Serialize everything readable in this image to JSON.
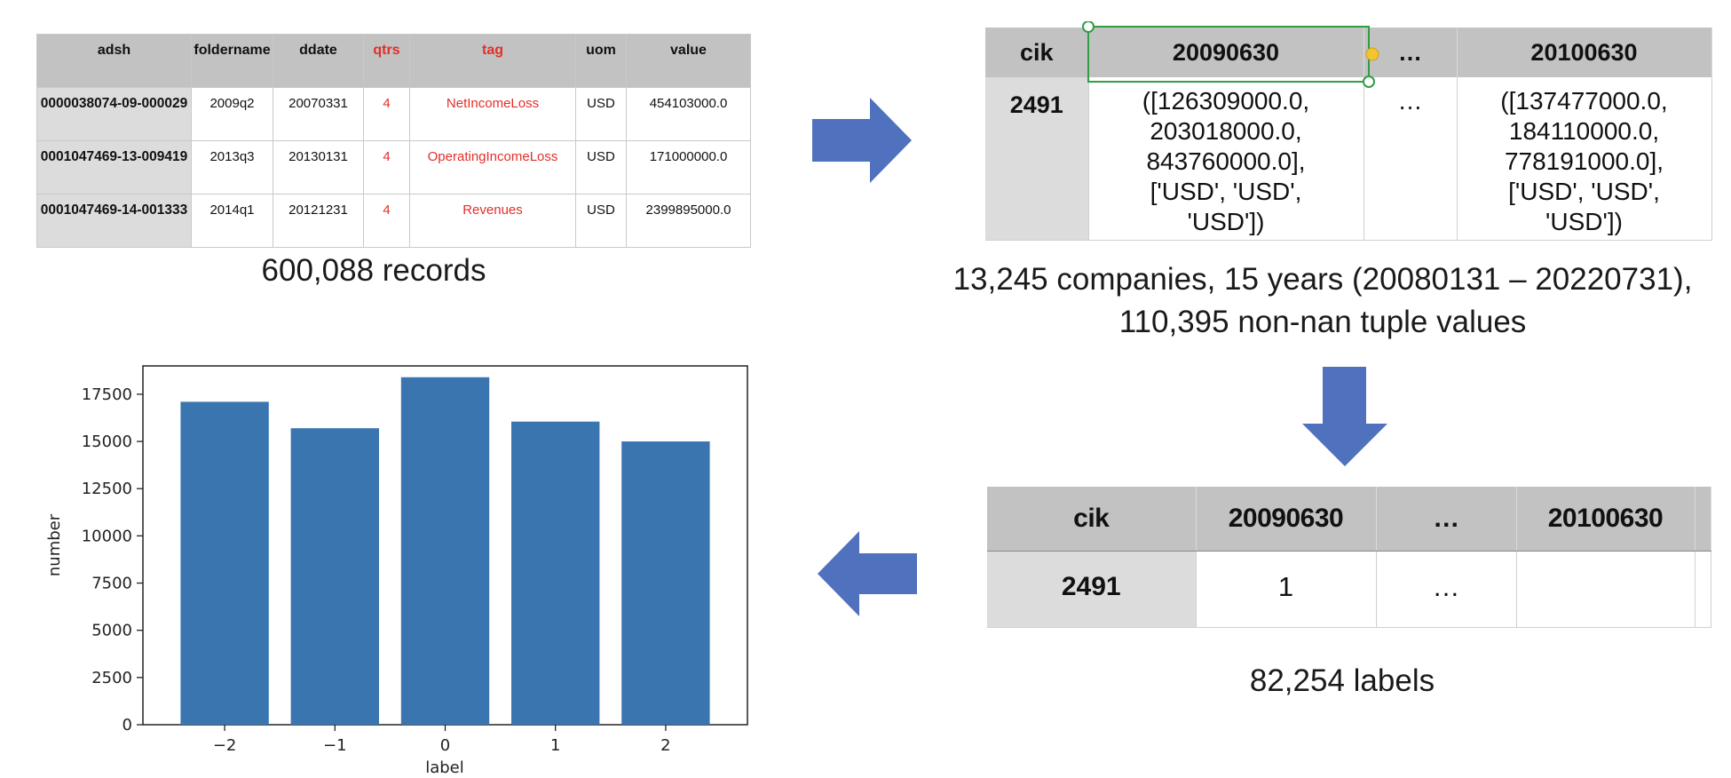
{
  "table_raw": {
    "columns": [
      "adsh",
      "foldername",
      "ddate",
      "qtrs",
      "tag",
      "uom",
      "value"
    ],
    "rows": [
      [
        "0000038074-09-000029",
        "2009q2",
        "20070331",
        "4",
        "NetIncomeLoss",
        "USD",
        "454103000.0"
      ],
      [
        "0001047469-13-009419",
        "2013q3",
        "20130131",
        "4",
        "OperatingIncomeLoss",
        "USD",
        "171000000.0"
      ],
      [
        "0001047469-14-001333",
        "2014q1",
        "20121231",
        "4",
        "Revenues",
        "USD",
        "2399895000.0"
      ]
    ],
    "highlight_color": "#e0302a",
    "caption": "600,088 records"
  },
  "table_tuples": {
    "columns": [
      "cik",
      "20090630",
      "…",
      "20100630"
    ],
    "row": {
      "cik": "2491",
      "cell1": [
        "([126309000.0,",
        "203018000.0,",
        "843760000.0],",
        "['USD', 'USD',",
        "'USD'])"
      ],
      "ellipsis": "…",
      "cell2": [
        "([137477000.0,",
        "184110000.0,",
        "778191000.0],",
        "['USD', 'USD',",
        "'USD'])"
      ]
    },
    "caption_line1": "13,245 companies, 15 years (20080131 – 20220731),",
    "caption_line2": "110,395 non-nan tuple values"
  },
  "table_labels": {
    "columns": [
      "cik",
      "20090630",
      "…",
      "20100630"
    ],
    "row": [
      "2491",
      "1",
      "…",
      ""
    ],
    "caption": "82,254 labels"
  },
  "colors": {
    "arrow": "#4f71be",
    "bar": "#3a75b0",
    "selection": "#2f9e44",
    "handle": "#f4c430"
  },
  "chart_data": {
    "type": "bar",
    "categories": [
      "−2",
      "−1",
      "0",
      "1",
      "2"
    ],
    "values": [
      17100,
      15700,
      18400,
      16050,
      15000
    ],
    "xlabel": "label",
    "ylabel": "number",
    "ylim": [
      0,
      19000
    ],
    "yticks": [
      0,
      2500,
      5000,
      7500,
      10000,
      12500,
      15000,
      17500
    ],
    "ytick_labels": [
      "0",
      "2500",
      "5000",
      "7500",
      "10000",
      "12500",
      "15000",
      "17500"
    ],
    "grid": false
  }
}
